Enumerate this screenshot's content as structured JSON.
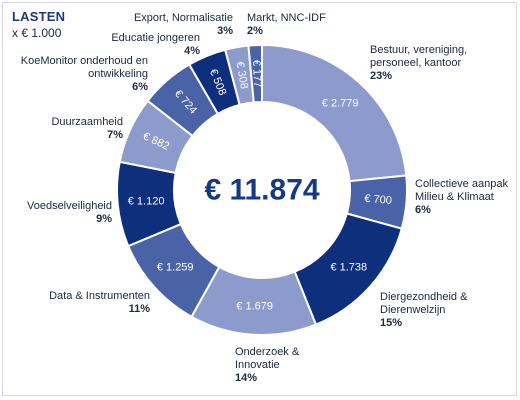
{
  "header": {
    "title": "LASTEN",
    "unit": "x € 1.000"
  },
  "chart_data": {
    "type": "pie",
    "variant": "donut",
    "total_label": "€ 11.874",
    "colors": {
      "dark": "#0d2f7c",
      "medium": "#4a62a6",
      "light": "#8d9bcc",
      "center_text": "#143a84"
    },
    "slices": [
      {
        "name": "Bestuur, vereniging, personeel, kantoor",
        "value": 2779,
        "value_label": "€ 2.779",
        "percent_label": "23%",
        "color": "#8d9bcc"
      },
      {
        "name": "Collectieve aanpak Milieu & Klimaat",
        "value": 700,
        "value_label": "€ 700",
        "percent_label": "6%",
        "color": "#4a62a6"
      },
      {
        "name": "Diergezondheid & Dierenwelzijn",
        "value": 1738,
        "value_label": "€ 1.738",
        "percent_label": "15%",
        "color": "#0d2f7c"
      },
      {
        "name": "Onderzoek & Innovatie",
        "value": 1679,
        "value_label": "€ 1.679",
        "percent_label": "14%",
        "color": "#8d9bcc"
      },
      {
        "name": "Data & Instrumenten",
        "value": 1259,
        "value_label": "€ 1.259",
        "percent_label": "11%",
        "color": "#4a62a6"
      },
      {
        "name": "Voedselveiligheid",
        "value": 1120,
        "value_label": "€ 1.120",
        "percent_label": "9%",
        "color": "#0d2f7c"
      },
      {
        "name": "Duurzaamheid",
        "value": 882,
        "value_label": "€ 882",
        "percent_label": "7%",
        "color": "#8d9bcc"
      },
      {
        "name": "KoeMonitor onderhoud en ontwikkeling",
        "value": 724,
        "value_label": "€ 724",
        "percent_label": "6%",
        "color": "#4a62a6"
      },
      {
        "name": "Educatie jongeren",
        "value": 508,
        "value_label": "€ 508",
        "percent_label": "4%",
        "color": "#0d2f7c"
      },
      {
        "name": "Export, Normalisatie",
        "value": 308,
        "value_label": "€ 308",
        "percent_label": "3%",
        "color": "#8d9bcc"
      },
      {
        "name": "Markt, NNC-IDF",
        "value": 177,
        "value_label": "€ 177",
        "percent_label": "2%",
        "color": "#4a62a6"
      }
    ]
  }
}
